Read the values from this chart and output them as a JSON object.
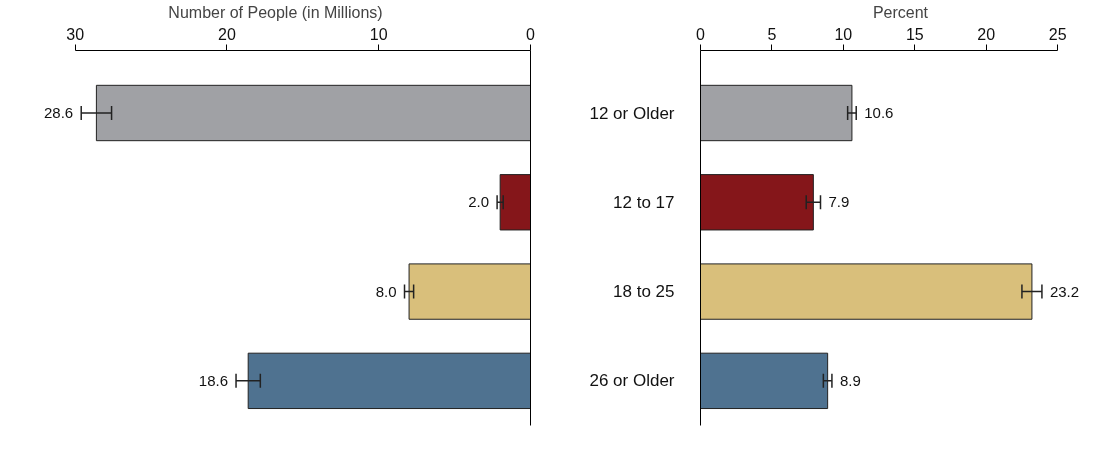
{
  "chart_data": [
    {
      "type": "bar",
      "orientation": "horizontal",
      "xlabel": "Number of People (in Millions)",
      "categories": [
        null,
        null,
        null,
        null
      ],
      "values": [
        28.6,
        2.0,
        8.0,
        18.6
      ],
      "value_labels": [
        "28.6",
        "2.0",
        "8.0",
        "18.6"
      ],
      "colors": [
        "#a0a1a5",
        "#85161a",
        "#d9bf7b",
        "#4f7290"
      ],
      "errors": [
        1.0,
        0.2,
        0.3,
        0.8
      ],
      "xlim": [
        30,
        0
      ],
      "xticks": [
        30,
        20,
        10,
        0
      ],
      "tick_labels": "x",
      "grid": false
    },
    {
      "type": "bar",
      "orientation": "horizontal",
      "xlabel": "Percent",
      "categories": [
        "12 or Older",
        "12 to 17",
        "18 to 25",
        "26 or Older"
      ],
      "values": [
        10.6,
        7.9,
        23.2,
        8.9
      ],
      "value_labels": [
        "10.6",
        "7.9",
        "23.2",
        "8.9"
      ],
      "colors": [
        "#a0a1a5",
        "#85161a",
        "#d9bf7b",
        "#4f7290"
      ],
      "errors": [
        0.3,
        0.5,
        0.7,
        0.3
      ],
      "xlim": [
        0,
        25
      ],
      "xticks": [
        0,
        5,
        10,
        15,
        20,
        25
      ],
      "grid": false
    }
  ]
}
